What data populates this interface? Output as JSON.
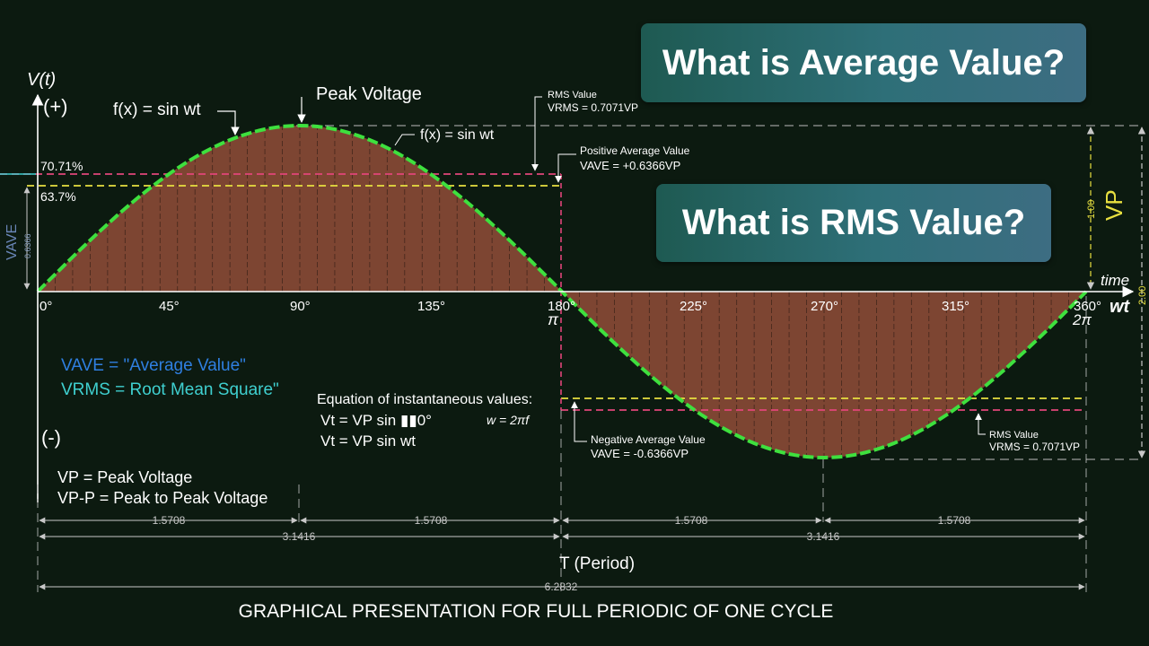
{
  "banners": {
    "average_question": "What is Average Value?",
    "rms_question": "What is RMS Value?"
  },
  "axes": {
    "y_label": "V(t)",
    "positive": "(+)",
    "negative": "(-)",
    "time_label": "time",
    "wt_label": "wt",
    "vave_side_label": "VAVE",
    "vave_side_value": "0.6366",
    "vp_side_value": "1.00",
    "vp_side_label": "VP",
    "vpp_side_value": "2.00"
  },
  "ticks": {
    "deg_0": "0°",
    "deg_45": "45°",
    "deg_90": "90°",
    "deg_135": "135°",
    "deg_180": "180°",
    "pi": "π",
    "deg_225": "225°",
    "deg_270": "270°",
    "deg_315": "315°",
    "deg_360": "360°",
    "two_pi": "2π"
  },
  "levels": {
    "rms_percent": "70.71%",
    "ave_percent": "63.7%"
  },
  "callouts": {
    "fx_left": "f(x) = sin wt",
    "peak_voltage": "Peak Voltage",
    "fx_right": "f(x) = sin wt",
    "rms_value_top": "RMS Value",
    "rms_formula_top": "VRMS = 0.7071VP",
    "pos_ave_title": "Positive Average Value",
    "pos_ave_formula": "VAVE = +0.6366VP",
    "neg_ave_title": "Negative Average Value",
    "neg_ave_formula": "VAVE = -0.6366VP",
    "rms_value_bottom": "RMS Value",
    "rms_formula_bottom": "VRMS = 0.7071VP"
  },
  "legend": {
    "vave_def": "VAVE = \"Average Value\"",
    "vrms_def": "VRMS = Root Mean Square\"",
    "vp_def": "VP = Peak Voltage",
    "vpp_def": "VP-P = Peak to Peak Voltage"
  },
  "equation": {
    "title": "Equation of instantaneous values:",
    "line1": "Vt = VP sin ▮▮0°",
    "omega": "w = 2πf",
    "line2": "Vt = VP sin wt"
  },
  "dimensions": {
    "q1": "1.5708",
    "q2": "1.5708",
    "q3": "1.5708",
    "q4": "1.5708",
    "half1": "3.1416",
    "half2": "3.1416",
    "period_label": "T (Period)",
    "full": "6.2832"
  },
  "caption": "GRAPHICAL PRESENTATION FOR FULL PERIODIC OF ONE CYCLE",
  "colors": {
    "background": "#0c1a10",
    "wave": "#3ee03e",
    "fill": "#8a4a36",
    "rms_line": "#e0457a",
    "ave_line": "#e8e040",
    "vp_label": "#e8e040",
    "vave_text": "#2f7fe0",
    "vrms_text": "#3fd0d0",
    "axis": "#ffffff",
    "dimension": "#c8c8c8"
  },
  "chart_data": {
    "type": "line",
    "function": "f(x) = sin wt",
    "x_degrees": [
      0,
      45,
      90,
      135,
      180,
      225,
      270,
      315,
      360
    ],
    "y_normalized": [
      0,
      0.7071,
      1,
      0.7071,
      0,
      -0.7071,
      -1,
      -0.7071,
      0
    ],
    "vp": 1.0,
    "vpp": 2.0,
    "vrms_ratio": 0.7071,
    "vave_ratio": 0.6366,
    "xlim_degrees": [
      0,
      360
    ],
    "ylim": [
      -1,
      1
    ]
  }
}
